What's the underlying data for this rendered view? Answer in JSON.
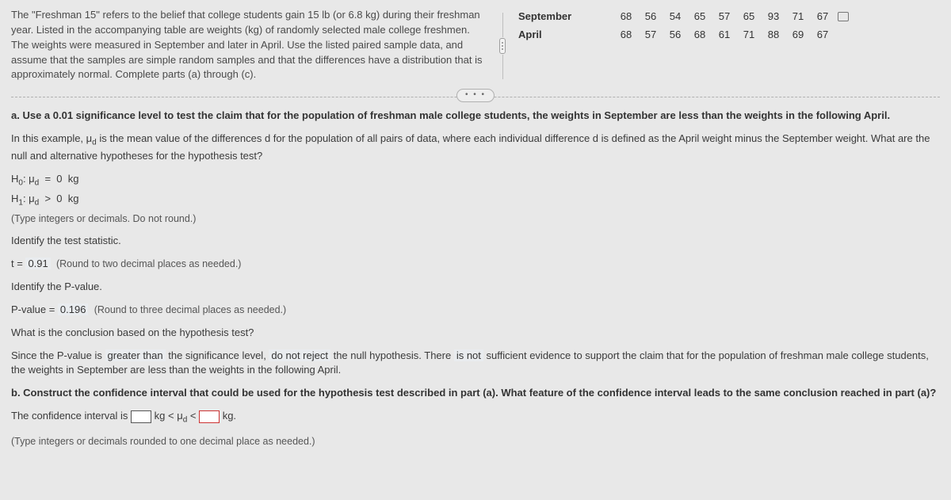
{
  "top": {
    "problem": "The \"Freshman 15\" refers to the belief that college students gain 15 lb (or 6.8 kg) during their freshman year. Listed in the accompanying table are weights (kg) of randomly selected male college freshmen. The weights were measured in September and later in April. Use the listed paired sample data, and assume that the samples are simple random samples and that the differences have a distribution that is approximately normal. Complete parts (a) through (c).",
    "table": {
      "rows": [
        {
          "label": "September",
          "values": [
            "68",
            "56",
            "54",
            "65",
            "57",
            "65",
            "93",
            "71",
            "67"
          ]
        },
        {
          "label": "April",
          "values": [
            "68",
            "57",
            "56",
            "68",
            "61",
            "71",
            "88",
            "69",
            "67"
          ]
        }
      ]
    }
  },
  "expand_label": "• • •",
  "partA": {
    "prompt": "a. Use a 0.01 significance level to test the claim that for the population of freshman male college students, the weights in September are less than the weights in the following April.",
    "mu_desc_pre": "In this example, ",
    "mu_desc_post": " is the mean value of the differences d for the population of all pairs of data, where each individual difference d is defined as the April weight minus the September weight. What are the null and alternative hypotheses for the hypothesis test?",
    "h0_val": "0",
    "h0_unit": "kg",
    "h1_val": "0",
    "h1_unit": "kg",
    "hyp_note": "(Type integers or decimals. Do not round.)",
    "stat_label": "Identify the test statistic.",
    "t_val": "0.91",
    "t_note": "(Round to two decimal places as needed.)",
    "p_label": "Identify the P-value.",
    "p_val": "0.196",
    "p_note": "(Round to three decimal places as needed.)",
    "conclusion_q": "What is the conclusion based on the hypothesis test?",
    "conclusion_1": "Since the P-value is ",
    "conclusion_fill1": "greater than",
    "conclusion_2": " the significance level, ",
    "conclusion_fill2": "do not reject",
    "conclusion_3": " the null hypothesis. There ",
    "conclusion_fill3": "is not",
    "conclusion_4": " sufficient evidence to support the claim that for the population of freshman male college students, the weights in September are less than the weights in the following April."
  },
  "partB": {
    "prompt": "b. Construct the confidence interval that could be used for the hypothesis test described in part (a). What feature of the confidence interval leads to the same conclusion reached in part (a)?",
    "ci_pre": "The confidence interval is ",
    "ci_unit1": "kg < ",
    "ci_unit2": " < ",
    "ci_unit3": " kg.",
    "note": "(Type integers or decimals rounded to one decimal place as needed.)"
  }
}
